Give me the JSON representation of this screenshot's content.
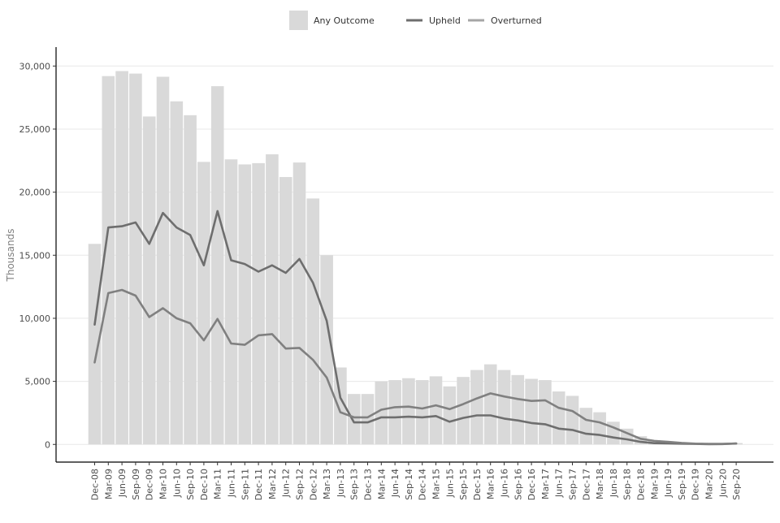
{
  "chart_data": {
    "type": "bar",
    "title": "",
    "xlabel": "",
    "ylabel": "Thousands",
    "ylim": [
      -1400,
      31500
    ],
    "yticks": [
      0,
      5000,
      10000,
      15000,
      20000,
      25000,
      30000
    ],
    "ytick_labels": [
      "0",
      "5,000",
      "10,000",
      "15,000",
      "20,000",
      "25,000",
      "30,000"
    ],
    "grid": "horizontal",
    "legend_position": "top-center",
    "legend": [
      {
        "label": "Any Outcome",
        "kind": "bar",
        "color": "#d9d9d9"
      },
      {
        "label": "Upheld",
        "kind": "line",
        "color": "#6e6e6e"
      },
      {
        "label": "Overturned",
        "kind": "line",
        "color": "#a6a6a6"
      }
    ],
    "categories": [
      "Dec-08",
      "Mar-09",
      "Jun-09",
      "Sep-09",
      "Dec-09",
      "Mar-10",
      "Jun-10",
      "Sep-10",
      "Dec-10",
      "Mar-11",
      "Jun-11",
      "Sep-11",
      "Dec-11",
      "Mar-12",
      "Jun-12",
      "Sep-12",
      "Dec-12",
      "Mar-13",
      "Jun-13",
      "Sep-13",
      "Dec-13",
      "Mar-14",
      "Jun-14",
      "Sep-14",
      "Dec-14",
      "Mar-15",
      "Jun-15",
      "Sep-15",
      "Dec-15",
      "Mar-16",
      "Jun-16",
      "Sep-16",
      "Dec-16",
      "Mar-17",
      "Jun-17",
      "Sep-17",
      "Dec-17",
      "Mar-18",
      "Jun-18",
      "Sep-18",
      "Dec-18",
      "Mar-19",
      "Jun-19",
      "Sep-19",
      "Dec-19",
      "Mar-20",
      "Jun-20",
      "Sep-20"
    ],
    "series": [
      {
        "name": "Any Outcome",
        "type": "bar",
        "color": "#d9d9d9",
        "values": [
          15900,
          29200,
          29600,
          29400,
          26000,
          29150,
          27200,
          26100,
          22400,
          28400,
          22600,
          22200,
          22300,
          23000,
          21200,
          22350,
          19500,
          15000,
          6100,
          4000,
          4000,
          5000,
          5100,
          5250,
          5100,
          5400,
          4600,
          5350,
          5900,
          6350,
          5900,
          5500,
          5200,
          5100,
          4200,
          3850,
          2900,
          2550,
          1800,
          1250,
          650,
          330,
          220,
          160,
          120,
          90,
          60,
          110
        ]
      },
      {
        "name": "Upheld",
        "type": "line",
        "color": "#6e6e6e",
        "values": [
          9500,
          17200,
          17300,
          17600,
          15900,
          18350,
          17200,
          16600,
          14200,
          18500,
          14600,
          14300,
          13700,
          14200,
          13600,
          14700,
          12800,
          9800,
          3700,
          1750,
          1750,
          2150,
          2150,
          2200,
          2150,
          2250,
          1800,
          2100,
          2300,
          2300,
          2050,
          1900,
          1700,
          1600,
          1250,
          1150,
          850,
          750,
          550,
          400,
          200,
          100,
          80,
          60,
          40,
          20,
          30,
          80
        ]
      },
      {
        "name": "Overturned",
        "type": "line",
        "color": "#808080",
        "values": [
          6500,
          12000,
          12250,
          11800,
          10100,
          10800,
          10000,
          9600,
          8250,
          9950,
          8000,
          7900,
          8650,
          8750,
          7600,
          7650,
          6700,
          5300,
          2550,
          2150,
          2150,
          2750,
          2950,
          3000,
          2850,
          3100,
          2800,
          3200,
          3650,
          4050,
          3800,
          3600,
          3450,
          3500,
          2900,
          2650,
          1950,
          1750,
          1350,
          900,
          450,
          280,
          200,
          120,
          60,
          40,
          40,
          70
        ]
      }
    ]
  }
}
